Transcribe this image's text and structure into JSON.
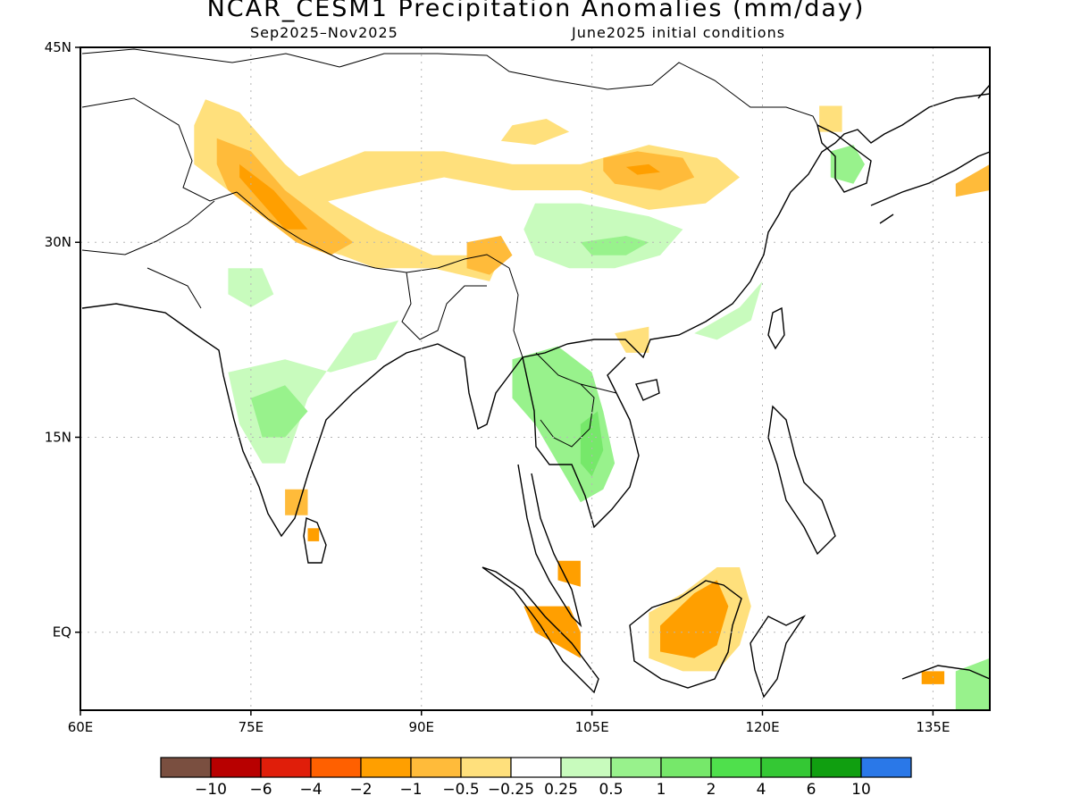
{
  "title": "NCAR_CESM1 Precipitation Anomalies (mm/day)",
  "subtitle_left": "Sep2025–Nov2025",
  "subtitle_right": "June2025 initial conditions",
  "axes": {
    "lon_min": 60,
    "lon_max": 140,
    "lat_min": -6,
    "lat_max": 45,
    "x_ticks": [
      {
        "v": 60,
        "label": "60E"
      },
      {
        "v": 75,
        "label": "75E"
      },
      {
        "v": 90,
        "label": "90E"
      },
      {
        "v": 105,
        "label": "105E"
      },
      {
        "v": 120,
        "label": "120E"
      },
      {
        "v": 135,
        "label": "135E"
      }
    ],
    "y_ticks": [
      {
        "v": 45,
        "label": "45N"
      },
      {
        "v": 30,
        "label": "30N"
      },
      {
        "v": 15,
        "label": "15N"
      },
      {
        "v": 0,
        "label": "EQ"
      }
    ]
  },
  "colorbar": {
    "colors": [
      "#7a4f40",
      "#b80000",
      "#e01e0a",
      "#ff6000",
      "#ff9f00",
      "#ffbb3a",
      "#ffe07c",
      "#ffffff",
      "#c8fbbd",
      "#98f28c",
      "#76e86a",
      "#4fe04c",
      "#34c834",
      "#109f10",
      "#2a78e8"
    ],
    "labels": [
      "−10",
      "−6",
      "−4",
      "−2",
      "−1",
      "−0.5",
      "−0.25",
      "0.25",
      "0.5",
      "1",
      "2",
      "4",
      "6",
      "10"
    ]
  },
  "anomaly_regions": [
    {
      "name": "kashmir-himalaya-dry",
      "level": "-0.25",
      "color": "#ffe07c",
      "pts": [
        [
          71,
          41
        ],
        [
          74,
          40
        ],
        [
          76,
          38
        ],
        [
          78,
          36
        ],
        [
          82,
          33
        ],
        [
          86,
          31
        ],
        [
          91,
          29
        ],
        [
          95,
          29
        ],
        [
          97,
          29
        ],
        [
          96,
          27
        ],
        [
          91,
          28
        ],
        [
          86,
          28
        ],
        [
          83,
          29
        ],
        [
          79,
          30
        ],
        [
          76,
          32
        ],
        [
          73,
          34
        ],
        [
          70,
          36
        ],
        [
          70,
          39
        ]
      ]
    },
    {
      "name": "kashmir-core",
      "level": "-1",
      "color": "#ffbb3a",
      "pts": [
        [
          72,
          38
        ],
        [
          75,
          37
        ],
        [
          78,
          34
        ],
        [
          81,
          32
        ],
        [
          84,
          30
        ],
        [
          82,
          29
        ],
        [
          79,
          30
        ],
        [
          76,
          32
        ],
        [
          73,
          34
        ],
        [
          72,
          36
        ]
      ]
    },
    {
      "name": "kashmir-inner",
      "level": "-2",
      "color": "#ff9f00",
      "pts": [
        [
          74,
          36
        ],
        [
          77,
          34
        ],
        [
          79,
          32
        ],
        [
          80,
          31
        ],
        [
          78,
          31
        ],
        [
          76,
          33
        ],
        [
          74,
          35
        ]
      ]
    },
    {
      "name": "tibet-arc-dry",
      "level": "-0.25",
      "color": "#ffe07c",
      "pts": [
        [
          79,
          35
        ],
        [
          85,
          37
        ],
        [
          92,
          37
        ],
        [
          98,
          36
        ],
        [
          104,
          36
        ],
        [
          110,
          37.5
        ],
        [
          116,
          36.5
        ],
        [
          118,
          35
        ],
        [
          115,
          33
        ],
        [
          110,
          32.5
        ],
        [
          104,
          34
        ],
        [
          98,
          34
        ],
        [
          92,
          35
        ],
        [
          86,
          34
        ],
        [
          81,
          33
        ]
      ]
    },
    {
      "name": "north-china-dry",
      "level": "-1",
      "color": "#ffbb3a",
      "pts": [
        [
          106,
          36.5
        ],
        [
          109,
          37
        ],
        [
          113,
          36.5
        ],
        [
          114,
          35
        ],
        [
          111,
          34
        ],
        [
          107,
          34.5
        ],
        [
          106,
          35.5
        ]
      ]
    },
    {
      "name": "north-china-core",
      "level": "-2",
      "color": "#ff9f00",
      "pts": [
        [
          108,
          35.8
        ],
        [
          110,
          36
        ],
        [
          111,
          35.4
        ],
        [
          109,
          35.2
        ]
      ]
    },
    {
      "name": "mongolia-dry",
      "level": "-0.25",
      "color": "#ffe07c",
      "pts": [
        [
          98,
          39
        ],
        [
          101,
          39.5
        ],
        [
          103,
          38.5
        ],
        [
          100,
          37.5
        ],
        [
          97,
          37.8
        ]
      ]
    },
    {
      "name": "yunnan-burma-dry",
      "level": "-1",
      "color": "#ffbb3a",
      "pts": [
        [
          94,
          30
        ],
        [
          97,
          30.5
        ],
        [
          98,
          29
        ],
        [
          96,
          27.5
        ],
        [
          94,
          28
        ]
      ]
    },
    {
      "name": "east-tibet-wet",
      "level": "0.5",
      "color": "#c8fbbd",
      "pts": [
        [
          100,
          33
        ],
        [
          104,
          33
        ],
        [
          110,
          32
        ],
        [
          113,
          31
        ],
        [
          111,
          29
        ],
        [
          107,
          28
        ],
        [
          103,
          28
        ],
        [
          100,
          29
        ],
        [
          99,
          31
        ]
      ]
    },
    {
      "name": "central-china-wet",
      "level": "1",
      "color": "#98f28c",
      "pts": [
        [
          104,
          30
        ],
        [
          108,
          30.5
        ],
        [
          110,
          30
        ],
        [
          108,
          29
        ],
        [
          105,
          29
        ]
      ]
    },
    {
      "name": "indochina-wet",
      "level": "1",
      "color": "#98f28c",
      "pts": [
        [
          98,
          21
        ],
        [
          102,
          22
        ],
        [
          105,
          20
        ],
        [
          106,
          17
        ],
        [
          107,
          13
        ],
        [
          106,
          11
        ],
        [
          104,
          10
        ],
        [
          102,
          13
        ],
        [
          100,
          16
        ],
        [
          98,
          18
        ]
      ]
    },
    {
      "name": "laos-wet-core",
      "level": "2",
      "color": "#76e86a",
      "pts": [
        [
          104,
          16
        ],
        [
          105.5,
          17
        ],
        [
          106,
          14
        ],
        [
          105,
          12
        ],
        [
          104,
          13
        ]
      ]
    },
    {
      "name": "india-wet",
      "level": "0.5",
      "color": "#c8fbbd",
      "pts": [
        [
          73,
          20
        ],
        [
          78,
          21
        ],
        [
          82,
          20
        ],
        [
          86,
          21
        ],
        [
          88,
          24
        ],
        [
          84,
          23
        ],
        [
          80,
          18
        ],
        [
          78,
          13
        ],
        [
          76,
          13
        ],
        [
          74,
          16
        ]
      ]
    },
    {
      "name": "deccan-wet-core",
      "level": "1",
      "color": "#98f28c",
      "pts": [
        [
          75,
          18
        ],
        [
          78,
          19
        ],
        [
          80,
          17
        ],
        [
          78,
          15
        ],
        [
          76,
          15
        ]
      ]
    },
    {
      "name": "gujarat-wet",
      "level": "0.5",
      "color": "#c8fbbd",
      "pts": [
        [
          73,
          28
        ],
        [
          76,
          28
        ],
        [
          77,
          26
        ],
        [
          75,
          25
        ],
        [
          73,
          26
        ]
      ]
    },
    {
      "name": "south-india-dry",
      "level": "-1",
      "color": "#ffbb3a",
      "pts": [
        [
          78,
          11
        ],
        [
          80,
          11
        ],
        [
          80,
          9
        ],
        [
          78,
          9
        ]
      ]
    },
    {
      "name": "sri-lanka-dry",
      "level": "-2",
      "color": "#ff9f00",
      "pts": [
        [
          80,
          8
        ],
        [
          81,
          8
        ],
        [
          81,
          7
        ],
        [
          80,
          7
        ]
      ]
    },
    {
      "name": "borneo-dry",
      "level": "-0.25",
      "color": "#ffe07c",
      "pts": [
        [
          110,
          1.5
        ],
        [
          113,
          3
        ],
        [
          116,
          5
        ],
        [
          118,
          5
        ],
        [
          119,
          2
        ],
        [
          118,
          -1
        ],
        [
          116,
          -3
        ],
        [
          113,
          -3
        ],
        [
          110,
          -2
        ]
      ]
    },
    {
      "name": "borneo-dry-core",
      "level": "-2",
      "color": "#ff9f00",
      "pts": [
        [
          111,
          0.5
        ],
        [
          114,
          3
        ],
        [
          116,
          4
        ],
        [
          117,
          2
        ],
        [
          116,
          -1
        ],
        [
          114,
          -2
        ],
        [
          111,
          -1.5
        ]
      ]
    },
    {
      "name": "sumatra-dry",
      "level": "-2",
      "color": "#ff9f00",
      "pts": [
        [
          99,
          2
        ],
        [
          103,
          2
        ],
        [
          104,
          0
        ],
        [
          104,
          -2
        ],
        [
          102,
          -1
        ],
        [
          100,
          0
        ]
      ]
    },
    {
      "name": "malaya-dry",
      "level": "-2",
      "color": "#ff9f00",
      "pts": [
        [
          102,
          5.5
        ],
        [
          104,
          5.5
        ],
        [
          104,
          3.5
        ],
        [
          102,
          4
        ]
      ]
    },
    {
      "name": "korea-wet",
      "level": "1",
      "color": "#98f28c",
      "pts": [
        [
          126,
          37
        ],
        [
          128,
          37.5
        ],
        [
          129,
          36
        ],
        [
          128,
          34.5
        ],
        [
          126,
          35
        ]
      ]
    },
    {
      "name": "north-korea-dry",
      "level": "-0.25",
      "color": "#ffe07c",
      "pts": [
        [
          125,
          40.5
        ],
        [
          127,
          40.5
        ],
        [
          127,
          38.5
        ],
        [
          125,
          38.5
        ]
      ]
    },
    {
      "name": "japan-dry",
      "level": "-1",
      "color": "#ffbb3a",
      "pts": [
        [
          137,
          34.5
        ],
        [
          140,
          36
        ],
        [
          140,
          34
        ],
        [
          137,
          33.5
        ]
      ]
    },
    {
      "name": "south-china-wet",
      "level": "0.5",
      "color": "#c8fbbd",
      "pts": [
        [
          114,
          23
        ],
        [
          118,
          25
        ],
        [
          120,
          27
        ],
        [
          119,
          24
        ],
        [
          116,
          22.5
        ]
      ]
    },
    {
      "name": "guangxi-dry",
      "level": "-0.25",
      "color": "#ffe07c",
      "pts": [
        [
          107,
          23
        ],
        [
          110,
          23.5
        ],
        [
          110,
          21.5
        ],
        [
          108,
          21.5
        ]
      ]
    },
    {
      "name": "banda-dry",
      "level": "-2",
      "color": "#ff9f00",
      "pts": [
        [
          134,
          -3
        ],
        [
          136,
          -3
        ],
        [
          136,
          -4
        ],
        [
          134,
          -4
        ]
      ]
    },
    {
      "name": "new-guinea-wet",
      "level": "1",
      "color": "#98f28c",
      "pts": [
        [
          137,
          -3
        ],
        [
          140,
          -2
        ],
        [
          140,
          -6
        ],
        [
          137,
          -6
        ]
      ]
    }
  ]
}
